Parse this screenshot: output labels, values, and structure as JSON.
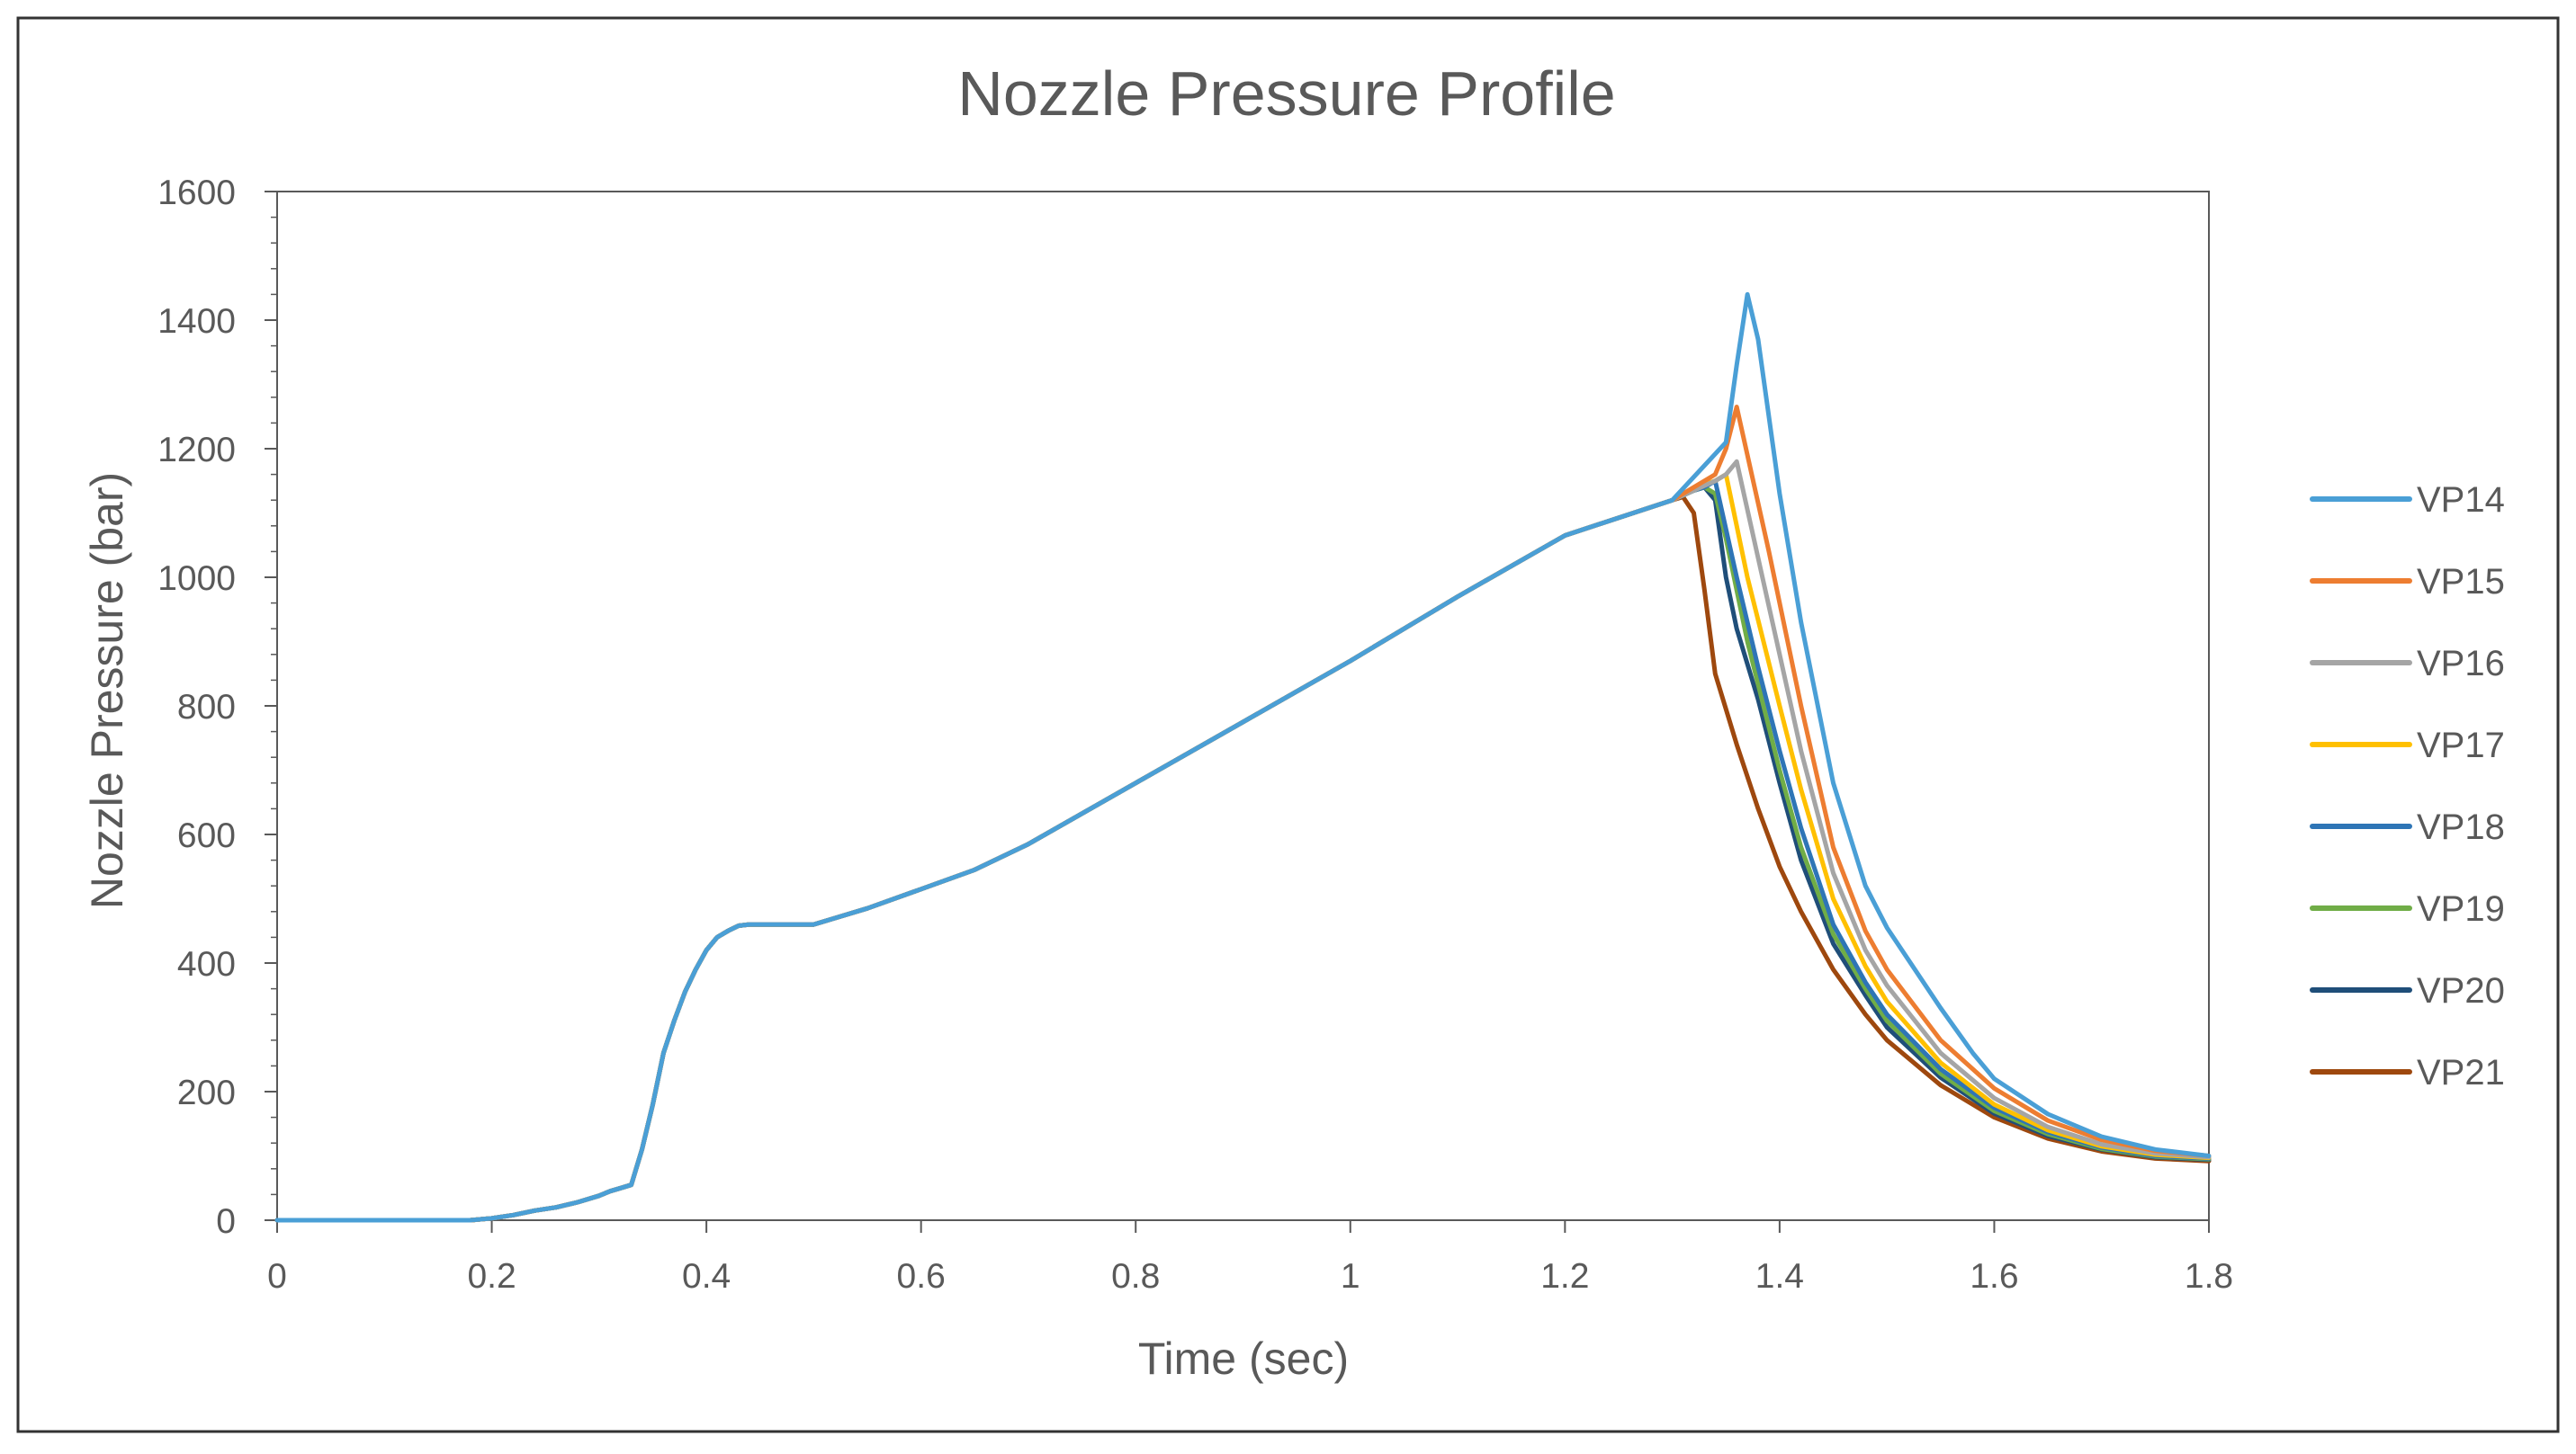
{
  "chart_data": {
    "type": "line",
    "title": "Nozzle Pressure Profile",
    "xlabel": "Time (sec)",
    "ylabel": "Nozzle Pressure (bar)",
    "xlim": [
      0,
      1.8
    ],
    "ylim": [
      0,
      1600
    ],
    "x_ticks": [
      0,
      0.2,
      0.4,
      0.6,
      0.8,
      1,
      1.2,
      1.4,
      1.6,
      1.8
    ],
    "y_ticks": [
      0,
      200,
      400,
      600,
      800,
      1000,
      1200,
      1400,
      1600
    ],
    "grid": false,
    "legend_position": "right",
    "common_curve": {
      "x": [
        0,
        0.1,
        0.18,
        0.2,
        0.22,
        0.24,
        0.26,
        0.28,
        0.3,
        0.31,
        0.32,
        0.33,
        0.34,
        0.35,
        0.36,
        0.37,
        0.38,
        0.39,
        0.4,
        0.41,
        0.42,
        0.43,
        0.44,
        0.45,
        0.46,
        0.48,
        0.5,
        0.55,
        0.6,
        0.65,
        0.7,
        0.8,
        0.9,
        1.0,
        1.1,
        1.2,
        1.3
      ],
      "y": [
        0,
        0,
        0,
        3,
        8,
        15,
        20,
        28,
        38,
        45,
        50,
        55,
        110,
        180,
        260,
        310,
        355,
        390,
        420,
        440,
        450,
        458,
        460,
        460,
        460,
        460,
        460,
        485,
        515,
        545,
        585,
        680,
        775,
        870,
        970,
        1065,
        1120
      ]
    },
    "series": [
      {
        "name": "VP14",
        "color": "#4a9fd6",
        "x": [
          1.35,
          1.36,
          1.37,
          1.38,
          1.4,
          1.42,
          1.45,
          1.48,
          1.5,
          1.52,
          1.55,
          1.58,
          1.6,
          1.65,
          1.7,
          1.75,
          1.8
        ],
        "y": [
          1210,
          1330,
          1440,
          1370,
          1130,
          930,
          680,
          520,
          455,
          405,
          330,
          260,
          220,
          165,
          130,
          110,
          100
        ]
      },
      {
        "name": "VP15",
        "color": "#ed7d31",
        "x": [
          1.34,
          1.35,
          1.36,
          1.37,
          1.39,
          1.42,
          1.45,
          1.48,
          1.5,
          1.55,
          1.6,
          1.65,
          1.7,
          1.75,
          1.8
        ],
        "y": [
          1160,
          1200,
          1265,
          1190,
          1040,
          800,
          580,
          450,
          390,
          280,
          205,
          155,
          125,
          108,
          100
        ]
      },
      {
        "name": "VP16",
        "color": "#a5a5a5",
        "x": [
          1.34,
          1.35,
          1.36,
          1.38,
          1.4,
          1.42,
          1.45,
          1.48,
          1.5,
          1.55,
          1.6,
          1.65,
          1.7,
          1.75,
          1.8
        ],
        "y": [
          1150,
          1160,
          1180,
          1030,
          880,
          730,
          540,
          420,
          365,
          260,
          190,
          145,
          118,
          104,
          98
        ]
      },
      {
        "name": "VP17",
        "color": "#ffc000",
        "x": [
          1.33,
          1.34,
          1.35,
          1.37,
          1.4,
          1.42,
          1.45,
          1.48,
          1.5,
          1.55,
          1.6,
          1.65,
          1.7,
          1.75,
          1.8
        ],
        "y": [
          1145,
          1150,
          1160,
          1000,
          800,
          670,
          500,
          395,
          340,
          245,
          180,
          140,
          115,
          102,
          97
        ]
      },
      {
        "name": "VP18",
        "color": "#2e75b6",
        "x": [
          1.32,
          1.33,
          1.34,
          1.36,
          1.38,
          1.4,
          1.42,
          1.45,
          1.48,
          1.5,
          1.55,
          1.6,
          1.65,
          1.7,
          1.75,
          1.8
        ],
        "y": [
          1135,
          1140,
          1150,
          1000,
          860,
          730,
          610,
          460,
          370,
          320,
          235,
          175,
          137,
          113,
          100,
          96
        ]
      },
      {
        "name": "VP19",
        "color": "#70ad47",
        "x": [
          1.32,
          1.33,
          1.34,
          1.35,
          1.37,
          1.4,
          1.42,
          1.45,
          1.48,
          1.5,
          1.55,
          1.6,
          1.65,
          1.7,
          1.75,
          1.8
        ],
        "y": [
          1135,
          1140,
          1130,
          1060,
          900,
          700,
          580,
          445,
          360,
          310,
          228,
          170,
          134,
          111,
          99,
          95
        ]
      },
      {
        "name": "VP20",
        "color": "#1f4e79",
        "x": [
          1.32,
          1.33,
          1.34,
          1.35,
          1.36,
          1.38,
          1.4,
          1.42,
          1.45,
          1.48,
          1.5,
          1.55,
          1.6,
          1.65,
          1.7,
          1.75,
          1.8
        ],
        "y": [
          1135,
          1140,
          1120,
          1000,
          920,
          810,
          680,
          560,
          430,
          350,
          300,
          222,
          166,
          131,
          110,
          98,
          94
        ]
      },
      {
        "name": "VP21",
        "color": "#9e480e",
        "x": [
          1.31,
          1.32,
          1.33,
          1.34,
          1.36,
          1.38,
          1.4,
          1.42,
          1.45,
          1.48,
          1.5,
          1.55,
          1.6,
          1.65,
          1.7,
          1.75,
          1.8
        ],
        "y": [
          1125,
          1100,
          980,
          850,
          740,
          640,
          550,
          480,
          390,
          320,
          280,
          210,
          160,
          127,
          107,
          96,
          92
        ]
      }
    ]
  }
}
